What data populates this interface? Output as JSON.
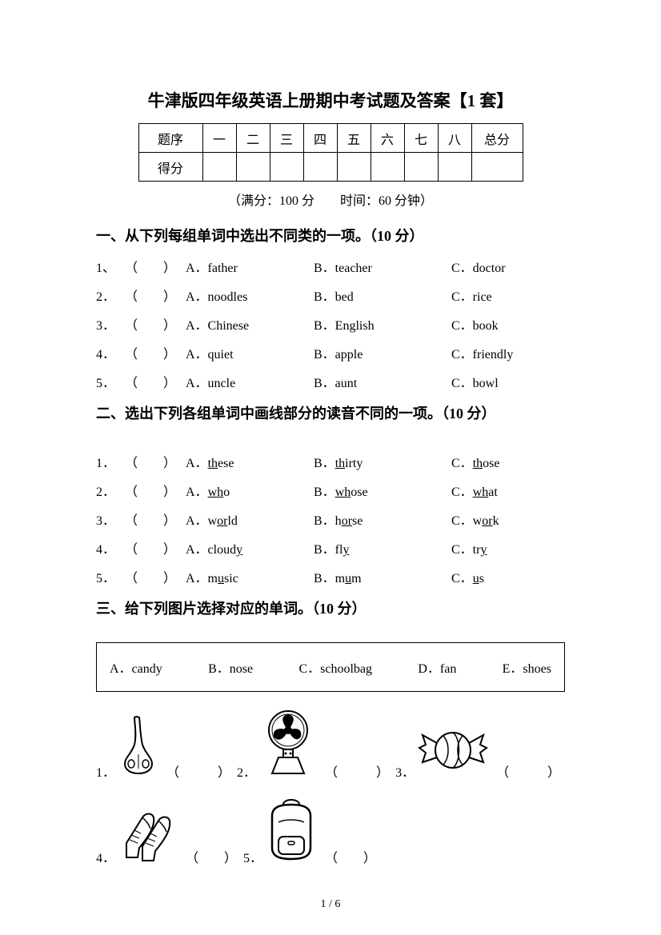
{
  "title": "牛津版四年级英语上册期中考试题及答案【1 套】",
  "score_table": {
    "row1": [
      "题序",
      "一",
      "二",
      "三",
      "四",
      "五",
      "六",
      "七",
      "八",
      "总分"
    ],
    "row2_label": "得分"
  },
  "subtitle": "（满分：100 分　　时间：60 分钟）",
  "section1": {
    "heading": "一、从下列每组单词中选出不同类的一项。（10 分）",
    "rows": [
      {
        "n": "1、",
        "a": "A．father",
        "b": "B．teacher",
        "c": "C．doctor"
      },
      {
        "n": "2．",
        "a": "A．noodles",
        "b": "B．bed",
        "c": "C．rice"
      },
      {
        "n": "3．",
        "a": "A．Chinese",
        "b": "B．English",
        "c": "C．book"
      },
      {
        "n": "4．",
        "a": "A．quiet",
        "b": "B．apple",
        "c": "C．friendly"
      },
      {
        "n": "5．",
        "a": "A．uncle",
        "b": "B．aunt",
        "c": "C．bowl"
      }
    ],
    "blank": "（　　）"
  },
  "section2": {
    "heading": "二、选出下列各组单词中画线部分的读音不同的一项。（10 分）",
    "rows": [
      {
        "n": "1．",
        "ap": "A．",
        "au": "th",
        "as": "ese",
        "bp": "B．",
        "bu": "th",
        "bs": "irty",
        "cp": "C．",
        "cu": "th",
        "cs": "ose"
      },
      {
        "n": "2．",
        "ap": "A．",
        "au": "wh",
        "as": "o",
        "bp": "B．",
        "bu": "wh",
        "bs": "ose",
        "cp": "C．",
        "cu": "wh",
        "cs": "at"
      },
      {
        "n": "3．",
        "ap": "A．w",
        "au": "or",
        "as": "ld",
        "bp": "B．h",
        "bu": "or",
        "bs": "se",
        "cp": "C．w",
        "cu": "or",
        "cs": "k"
      },
      {
        "n": "4．",
        "ap": "A．cloud",
        "au": "y",
        "as": "",
        "bp": "B．fl",
        "bu": "y",
        "bs": "",
        "cp": "C．tr",
        "cu": "y",
        "cs": ""
      },
      {
        "n": "5．",
        "ap": "A．m",
        "au": "u",
        "as": "sic",
        "bp": "B．m",
        "bu": "u",
        "bs": "m",
        "cp": "C．",
        "cu": "u",
        "cs": "s"
      }
    ],
    "blank": "（　　）"
  },
  "section3": {
    "heading": "三、给下列图片选择对应的单词。（10 分）",
    "options": [
      "A．candy",
      "B．nose",
      "C．schoolbag",
      "D．fan",
      "E．shoes"
    ],
    "items": [
      {
        "n": "1．",
        "icon": "nose"
      },
      {
        "n": "2．",
        "icon": "fan"
      },
      {
        "n": "3．",
        "icon": "candy"
      },
      {
        "n": "4．",
        "icon": "shoes"
      },
      {
        "n": "5．",
        "icon": "schoolbag"
      }
    ],
    "blank": "（　　　）",
    "blank_short": "（　　）"
  },
  "page_num": "1 / 6"
}
